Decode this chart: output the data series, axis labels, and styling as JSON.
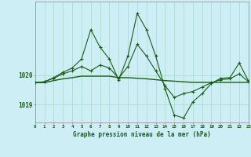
{
  "title": "Graphe pression niveau de la mer (hPa)",
  "background_color": "#cdeef5",
  "grid_color": "#b0ddd0",
  "line_color": "#1a5c1a",
  "marker_color": "#1a5c1a",
  "hours": [
    0,
    1,
    2,
    3,
    4,
    5,
    6,
    7,
    8,
    9,
    10,
    11,
    12,
    13,
    14,
    15,
    16,
    17,
    18,
    19,
    20,
    21,
    22,
    23
  ],
  "series_flat": [
    1019.75,
    1019.75,
    1019.82,
    1019.88,
    1019.92,
    1019.97,
    1019.97,
    1019.97,
    1019.97,
    1019.92,
    1019.92,
    1019.9,
    1019.88,
    1019.85,
    1019.82,
    1019.8,
    1019.78,
    1019.76,
    1019.76,
    1019.76,
    1019.76,
    1019.76,
    1019.76,
    1019.76
  ],
  "series_mid": [
    1019.75,
    1019.78,
    1019.9,
    1020.05,
    1020.15,
    1020.3,
    1020.15,
    1020.35,
    1020.25,
    1019.9,
    1020.3,
    1021.05,
    1020.65,
    1020.15,
    1019.65,
    1019.25,
    1019.38,
    1019.45,
    1019.6,
    1019.75,
    1019.85,
    1019.88,
    1020.05,
    1019.78
  ],
  "series_volatile": [
    1019.75,
    1019.78,
    1019.92,
    1020.1,
    1020.25,
    1020.55,
    1021.55,
    1020.95,
    1020.55,
    1019.85,
    1020.65,
    1022.1,
    1021.55,
    1020.65,
    1019.55,
    1018.65,
    1018.55,
    1019.1,
    1019.38,
    1019.72,
    1019.9,
    1019.92,
    1020.42,
    1019.8
  ],
  "ylim": [
    1018.4,
    1022.5
  ],
  "yticks": [
    1019.0,
    1020.0
  ],
  "xlim": [
    0,
    23
  ]
}
